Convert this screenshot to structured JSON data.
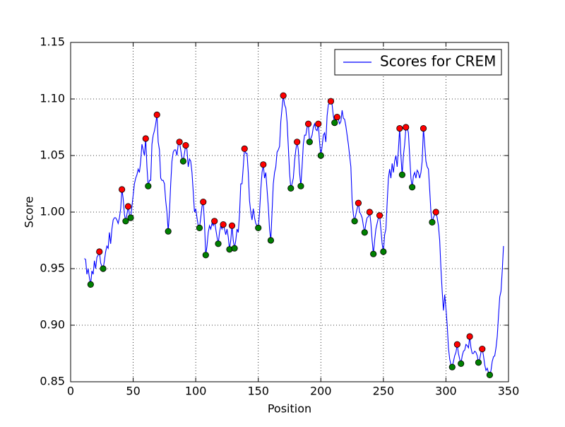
{
  "chart_data": {
    "type": "line",
    "xlabel": "Position",
    "ylabel": "Score",
    "xlim": [
      0,
      350
    ],
    "xticks": [
      0,
      50,
      100,
      150,
      200,
      250,
      300,
      350
    ],
    "ylim": [
      0.85,
      1.15
    ],
    "yticks": [
      0.85,
      {
        "value": 0.9,
        "label": "0.90"
      },
      0.95,
      {
        "value": 1.0,
        "label": "1.00"
      },
      1.05,
      {
        "value": 1.1,
        "label": "1.10"
      },
      1.15
    ],
    "grid": true,
    "legend": "upper right",
    "series": [
      {
        "name": "Scores for CREM",
        "color": "#0000ff",
        "style": "line",
        "x": [
          11,
          12,
          13,
          14,
          15,
          16,
          17,
          18,
          19,
          20,
          21,
          22,
          23,
          24,
          25,
          26,
          27,
          28,
          29,
          30,
          31,
          32,
          33,
          34,
          35,
          36,
          37,
          38,
          39,
          40,
          41,
          42,
          43,
          44,
          45,
          46,
          47,
          48,
          49,
          50,
          51,
          52,
          53,
          54,
          55,
          56,
          57,
          58,
          59,
          60,
          61,
          62,
          63,
          64,
          65,
          66,
          67,
          68,
          69,
          70,
          71,
          72,
          73,
          74,
          75,
          76,
          77,
          78,
          79,
          80,
          81,
          82,
          83,
          84,
          85,
          86,
          87,
          88,
          89,
          90,
          91,
          92,
          93,
          94,
          95,
          96,
          97,
          98,
          99,
          100,
          101,
          102,
          103,
          104,
          105,
          106,
          107,
          108,
          109,
          110,
          111,
          112,
          113,
          114,
          115,
          116,
          117,
          118,
          119,
          120,
          121,
          122,
          123,
          124,
          125,
          126,
          127,
          128,
          129,
          130,
          131,
          132,
          133,
          134,
          135,
          136,
          137,
          138,
          139,
          140,
          141,
          142,
          143,
          144,
          145,
          146,
          147,
          148,
          149,
          150,
          151,
          152,
          153,
          154,
          155,
          156,
          157,
          158,
          159,
          160,
          161,
          162,
          163,
          164,
          165,
          166,
          167,
          168,
          169,
          170,
          171,
          172,
          173,
          174,
          175,
          176,
          177,
          178,
          179,
          180,
          181,
          182,
          183,
          184,
          185,
          186,
          187,
          188,
          189,
          190,
          191,
          192,
          193,
          194,
          195,
          196,
          197,
          198,
          199,
          200,
          201,
          202,
          203,
          204,
          205,
          206,
          207,
          208,
          209,
          210,
          211,
          212,
          213,
          214,
          215,
          216,
          217,
          218,
          219,
          220,
          221,
          222,
          223,
          224,
          225,
          226,
          227,
          228,
          229,
          230,
          231,
          232,
          233,
          234,
          235,
          236,
          237,
          238,
          239,
          240,
          241,
          242,
          243,
          244,
          245,
          246,
          247,
          248,
          249,
          250,
          251,
          252,
          253,
          254,
          255,
          256,
          257,
          258,
          259,
          260,
          261,
          262,
          263,
          264,
          265,
          266,
          267,
          268,
          269,
          270,
          271,
          272,
          273,
          274,
          275,
          276,
          277,
          278,
          279,
          280,
          281,
          282,
          283,
          284,
          285,
          286,
          287,
          288,
          289,
          290,
          291,
          292,
          293,
          294,
          295,
          296,
          297,
          298,
          299,
          300,
          301,
          302,
          303,
          304,
          305,
          306,
          307,
          308,
          309,
          310,
          311,
          312,
          313,
          314,
          315,
          316,
          317,
          318,
          319,
          320,
          321,
          322,
          323,
          324,
          325,
          326,
          327,
          328,
          329,
          330,
          331,
          332,
          333,
          334,
          335,
          336,
          337,
          338,
          339,
          340,
          341,
          342,
          343,
          344,
          345,
          346
        ],
        "values": [
          0.959,
          0.958,
          0.945,
          0.95,
          0.942,
          0.936,
          0.948,
          0.945,
          0.957,
          0.95,
          0.96,
          0.962,
          0.965,
          0.955,
          0.952,
          0.95,
          0.957,
          0.965,
          0.97,
          0.968,
          0.982,
          0.972,
          0.985,
          0.993,
          0.995,
          0.995,
          0.993,
          0.99,
          0.995,
          1.003,
          1.02,
          1.012,
          0.998,
          0.992,
          0.998,
          1.005,
          0.998,
          0.995,
          1.005,
          1.015,
          1.025,
          1.03,
          1.033,
          1.038,
          1.035,
          1.045,
          1.06,
          1.055,
          1.05,
          1.065,
          1.04,
          1.023,
          1.028,
          1.028,
          1.06,
          1.068,
          1.072,
          1.078,
          1.086,
          1.062,
          1.055,
          1.03,
          1.028,
          1.028,
          1.025,
          1.01,
          1.0,
          0.983,
          1.0,
          1.025,
          1.045,
          1.053,
          1.055,
          1.055,
          1.05,
          1.06,
          1.062,
          1.055,
          1.048,
          1.045,
          1.052,
          1.059,
          1.055,
          1.04,
          1.047,
          1.045,
          1.035,
          1.018,
          1.0,
          1.003,
          0.995,
          0.988,
          0.986,
          0.995,
          1.005,
          1.009,
          0.99,
          0.962,
          0.97,
          0.982,
          0.988,
          0.985,
          0.99,
          0.988,
          0.992,
          0.985,
          0.978,
          0.972,
          0.982,
          0.988,
          0.985,
          0.989,
          0.985,
          0.98,
          0.985,
          0.978,
          0.967,
          0.975,
          0.988,
          0.975,
          0.968,
          0.975,
          0.985,
          0.982,
          0.998,
          1.025,
          1.025,
          1.04,
          1.056,
          1.052,
          1.052,
          1.035,
          1.01,
          1.0,
          0.993,
          1.003,
          0.995,
          0.99,
          0.988,
          0.986,
          1.0,
          1.02,
          1.035,
          1.042,
          1.03,
          1.035,
          1.02,
          1.005,
          0.985,
          0.975,
          1.0,
          1.025,
          1.035,
          1.04,
          1.053,
          1.055,
          1.058,
          1.08,
          1.092,
          1.103,
          1.095,
          1.092,
          1.08,
          1.058,
          1.035,
          1.021,
          1.025,
          1.03,
          1.045,
          1.055,
          1.062,
          1.055,
          1.035,
          1.023,
          1.04,
          1.06,
          1.068,
          1.068,
          1.075,
          1.078,
          1.062,
          1.065,
          1.068,
          1.075,
          1.078,
          1.073,
          1.072,
          1.078,
          1.062,
          1.05,
          1.058,
          1.068,
          1.07,
          1.062,
          1.085,
          1.095,
          1.096,
          1.098,
          1.095,
          1.085,
          1.079,
          1.082,
          1.084,
          1.082,
          1.078,
          1.08,
          1.09,
          1.083,
          1.082,
          1.076,
          1.068,
          1.06,
          1.05,
          1.04,
          1.01,
          0.998,
          0.992,
          0.998,
          1.003,
          1.008,
          1.0,
          0.998,
          0.995,
          0.988,
          0.982,
          0.99,
          0.995,
          0.996,
          1.0,
          0.99,
          0.975,
          0.963,
          0.975,
          0.985,
          0.99,
          0.995,
          0.997,
          0.985,
          0.972,
          0.965,
          0.98,
          0.985,
          1.008,
          1.03,
          1.038,
          1.03,
          1.043,
          1.035,
          1.045,
          1.05,
          1.04,
          1.055,
          1.074,
          1.05,
          1.033,
          1.05,
          1.06,
          1.075,
          1.075,
          1.07,
          1.05,
          1.03,
          1.022,
          1.032,
          1.035,
          1.03,
          1.037,
          1.035,
          1.03,
          1.035,
          1.045,
          1.074,
          1.06,
          1.045,
          1.04,
          1.038,
          1.02,
          1.0,
          0.991,
          0.995,
          0.998,
          1.0,
          0.995,
          0.988,
          0.975,
          0.95,
          0.93,
          0.913,
          0.927,
          0.915,
          0.9,
          0.88,
          0.87,
          0.865,
          0.863,
          0.868,
          0.873,
          0.876,
          0.883,
          0.875,
          0.87,
          0.866,
          0.873,
          0.877,
          0.878,
          0.883,
          0.882,
          0.88,
          0.89,
          0.88,
          0.875,
          0.875,
          0.877,
          0.876,
          0.873,
          0.867,
          0.87,
          0.876,
          0.879,
          0.873,
          0.865,
          0.86,
          0.862,
          0.858,
          0.856,
          0.86,
          0.868,
          0.872,
          0.873,
          0.88,
          0.89,
          0.908,
          0.925,
          0.93,
          0.948,
          0.97
        ]
      },
      {
        "color": "#ff0000",
        "style": "markers",
        "x": [
          23,
          41,
          46,
          60,
          69,
          87,
          92,
          106,
          115,
          122,
          129,
          139,
          154,
          170,
          181,
          190,
          198,
          208,
          213,
          230,
          239,
          247,
          263,
          268,
          282,
          292,
          309,
          319,
          329
        ],
        "values": [
          0.965,
          1.02,
          1.005,
          1.065,
          1.086,
          1.062,
          1.059,
          1.009,
          0.992,
          0.989,
          0.988,
          1.056,
          1.042,
          1.103,
          1.062,
          1.078,
          1.078,
          1.098,
          1.084,
          1.008,
          1.0,
          0.997,
          1.074,
          1.075,
          1.074,
          1.0,
          0.883,
          0.89,
          0.879
        ]
      },
      {
        "color": "#008000",
        "style": "markers",
        "x": [
          16,
          26,
          44,
          48,
          62,
          78,
          90,
          103,
          108,
          118,
          127,
          131,
          150,
          160,
          176,
          184,
          191,
          200,
          211,
          227,
          235,
          242,
          250,
          265,
          273,
          289,
          305,
          312,
          326,
          335
        ],
        "values": [
          0.936,
          0.95,
          0.992,
          0.995,
          1.023,
          0.983,
          1.045,
          0.986,
          0.962,
          0.972,
          0.967,
          0.968,
          0.986,
          0.975,
          1.021,
          1.023,
          1.062,
          1.05,
          1.079,
          0.992,
          0.982,
          0.963,
          0.965,
          1.033,
          1.022,
          0.991,
          0.863,
          0.866,
          0.867,
          0.856
        ]
      }
    ]
  }
}
